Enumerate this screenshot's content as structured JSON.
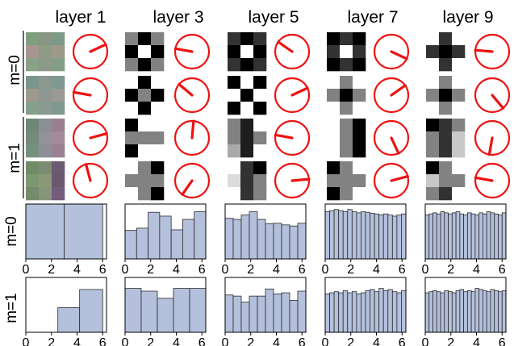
{
  "chart_data": {
    "type": "figure",
    "columns": [
      "layer 1",
      "layer 3",
      "layer 5",
      "layer 7",
      "layer 9"
    ],
    "upper_rows": [
      {
        "label": "m=0",
        "rows": 2
      },
      {
        "label": "m=1",
        "rows": 2
      }
    ],
    "lower_rows": [
      "m=0",
      "m=1"
    ],
    "histogram_xticks": [
      "0",
      "2",
      "4",
      "6"
    ],
    "histogram_xlim": [
      0,
      6.3
    ],
    "color_bar": "#b4c0dc",
    "color_dial": "#ee1111",
    "patches": {
      "layer 1": [
        [
          [
            "#7f9e7e",
            "#8a9584",
            "#7d9a88"
          ],
          [
            "#a7958f",
            "#8e9b87",
            "#9d9a8c"
          ],
          [
            "#88a287",
            "#8d9a8a",
            "#829e87"
          ]
        ],
        [
          [
            "#7d968d",
            "#8a9890",
            "#7f9a92"
          ],
          [
            "#9d9a8d",
            "#8e9693",
            "#9a9a94"
          ],
          [
            "#86a08e",
            "#8a9a90",
            "#80988f"
          ]
        ],
        [
          [
            "#6f8778",
            "#8b8f94",
            "#9b7f8e"
          ],
          [
            "#748b7b",
            "#939199",
            "#a48a9a"
          ],
          [
            "#76907e",
            "#8e8e98",
            "#9b8091"
          ]
        ],
        [
          [
            "#6f8b68",
            "#7b8c72",
            "#6a5a72"
          ],
          [
            "#7c9870",
            "#8a9878",
            "#6b5870"
          ],
          [
            "#748c6a",
            "#869479",
            "#755b7d"
          ]
        ]
      ],
      "layer 3": [
        [
          [
            130,
            0,
            130
          ],
          [
            0,
            255,
            0
          ],
          [
            130,
            0,
            130
          ]
        ],
        [
          [
            255,
            0,
            255
          ],
          [
            0,
            130,
            0
          ],
          [
            255,
            0,
            255
          ]
        ],
        [
          [
            0,
            255,
            255
          ],
          [
            130,
            130,
            130
          ],
          [
            0,
            255,
            255
          ]
        ],
        [
          [
            255,
            130,
            0
          ],
          [
            130,
            130,
            130
          ],
          [
            255,
            130,
            0
          ]
        ]
      ],
      "layer 5": [
        [
          [
            50,
            0,
            50
          ],
          [
            0,
            255,
            0
          ],
          [
            50,
            0,
            50
          ]
        ],
        [
          [
            0,
            255,
            0
          ],
          [
            255,
            0,
            255
          ],
          [
            0,
            255,
            0
          ]
        ],
        [
          [
            130,
            30,
            255
          ],
          [
            130,
            30,
            130
          ],
          [
            170,
            30,
            255
          ]
        ],
        [
          [
            255,
            50,
            0
          ],
          [
            220,
            50,
            130
          ],
          [
            255,
            50,
            130
          ]
        ]
      ],
      "layer 7": [
        [
          [
            0,
            50,
            0
          ],
          [
            50,
            255,
            50
          ],
          [
            0,
            50,
            0
          ]
        ],
        [
          [
            255,
            130,
            255
          ],
          [
            130,
            0,
            130
          ],
          [
            255,
            130,
            255
          ]
        ],
        [
          [
            255,
            130,
            0
          ],
          [
            255,
            130,
            0
          ],
          [
            255,
            130,
            0
          ]
        ],
        [
          [
            0,
            130,
            255
          ],
          [
            130,
            130,
            130
          ],
          [
            0,
            130,
            255
          ]
        ]
      ],
      "layer 9": [
        [
          [
            255,
            50,
            255
          ],
          [
            50,
            0,
            50
          ],
          [
            255,
            50,
            255
          ]
        ],
        [
          [
            255,
            130,
            255
          ],
          [
            130,
            0,
            130
          ],
          [
            255,
            130,
            255
          ]
        ],
        [
          [
            0,
            50,
            130
          ],
          [
            130,
            50,
            200
          ],
          [
            130,
            50,
            200
          ]
        ],
        [
          [
            0,
            130,
            255
          ],
          [
            200,
            130,
            130
          ],
          [
            130,
            50,
            255
          ]
        ]
      ]
    },
    "dial_angles_deg": {
      "layer 1": [
        25,
        170,
        15,
        105
      ],
      "layer 3": [
        170,
        140,
        85,
        235
      ],
      "layer 5": [
        145,
        25,
        170,
        5
      ],
      "layer 7": [
        335,
        35,
        295,
        15
      ],
      "layer 9": [
        175,
        310,
        260,
        170
      ]
    },
    "histograms": {
      "layer 1": [
        {
          "bins": [
            0,
            3,
            6
          ],
          "values": [
            1.0,
            1.0
          ]
        },
        {
          "bins": [
            2.5,
            4.2,
            6.0
          ],
          "values": [
            0.45,
            0.78
          ]
        }
      ],
      "layer 3": [
        {
          "bins": [
            0,
            0.9,
            1.8,
            2.7,
            3.6,
            4.5,
            5.4,
            6.3
          ],
          "values": [
            0.52,
            0.56,
            0.85,
            0.78,
            0.53,
            0.72,
            0.86
          ]
        },
        {
          "bins": [
            0,
            1.26,
            2.52,
            3.78,
            5.04,
            6.3
          ],
          "values": [
            0.8,
            0.75,
            0.62,
            0.8,
            0.8
          ]
        }
      ],
      "layer 5": [
        {
          "bins": [
            0,
            0.63,
            1.26,
            1.89,
            2.52,
            3.15,
            3.78,
            4.41,
            5.04,
            5.67,
            6.3
          ],
          "values": [
            0.74,
            0.72,
            0.8,
            0.86,
            0.72,
            0.64,
            0.65,
            0.62,
            0.6,
            0.65
          ]
        },
        {
          "bins": [
            0,
            0.63,
            1.26,
            1.89,
            2.52,
            3.15,
            3.78,
            4.41,
            5.04,
            5.67,
            6.3
          ],
          "values": [
            0.68,
            0.66,
            0.55,
            0.66,
            0.66,
            0.79,
            0.7,
            0.72,
            0.58,
            0.75
          ]
        }
      ],
      "layer 7": [
        {
          "bins": [
            0,
            0.35,
            0.7,
            1.05,
            1.4,
            1.75,
            2.1,
            2.45,
            2.8,
            3.15,
            3.5,
            3.85,
            4.2,
            4.55,
            4.9,
            5.25,
            5.6,
            5.95,
            6.3
          ],
          "values": [
            0.86,
            0.88,
            0.9,
            0.88,
            0.86,
            0.9,
            0.86,
            0.84,
            0.86,
            0.85,
            0.83,
            0.82,
            0.8,
            0.82,
            0.8,
            0.78,
            0.8,
            0.82
          ]
        },
        {
          "bins": [
            0,
            0.35,
            0.7,
            1.05,
            1.4,
            1.75,
            2.1,
            2.45,
            2.8,
            3.15,
            3.5,
            3.85,
            4.2,
            4.55,
            4.9,
            5.25,
            5.6,
            5.95,
            6.3
          ],
          "values": [
            0.7,
            0.72,
            0.74,
            0.72,
            0.76,
            0.72,
            0.74,
            0.7,
            0.72,
            0.76,
            0.78,
            0.74,
            0.8,
            0.76,
            0.78,
            0.74,
            0.72,
            0.76
          ]
        }
      ],
      "layer 9": [
        {
          "bins": [
            0,
            0.3,
            0.6,
            0.9,
            1.2,
            1.5,
            1.8,
            2.1,
            2.4,
            2.7,
            3.0,
            3.3,
            3.6,
            3.9,
            4.2,
            4.5,
            4.8,
            5.1,
            5.4,
            5.7,
            6.0,
            6.3
          ],
          "values": [
            0.8,
            0.82,
            0.84,
            0.82,
            0.86,
            0.84,
            0.82,
            0.84,
            0.86,
            0.82,
            0.8,
            0.84,
            0.82,
            0.8,
            0.84,
            0.82,
            0.86,
            0.84,
            0.82,
            0.8,
            0.84
          ]
        },
        {
          "bins": [
            0,
            0.3,
            0.6,
            0.9,
            1.2,
            1.5,
            1.8,
            2.1,
            2.4,
            2.7,
            3.0,
            3.3,
            3.6,
            3.9,
            4.2,
            4.5,
            4.8,
            5.1,
            5.4,
            5.7,
            6.0,
            6.3
          ],
          "values": [
            0.72,
            0.74,
            0.76,
            0.74,
            0.72,
            0.76,
            0.74,
            0.72,
            0.76,
            0.78,
            0.74,
            0.76,
            0.74,
            0.8,
            0.78,
            0.76,
            0.74,
            0.78,
            0.76,
            0.74,
            0.76
          ]
        }
      ]
    }
  }
}
